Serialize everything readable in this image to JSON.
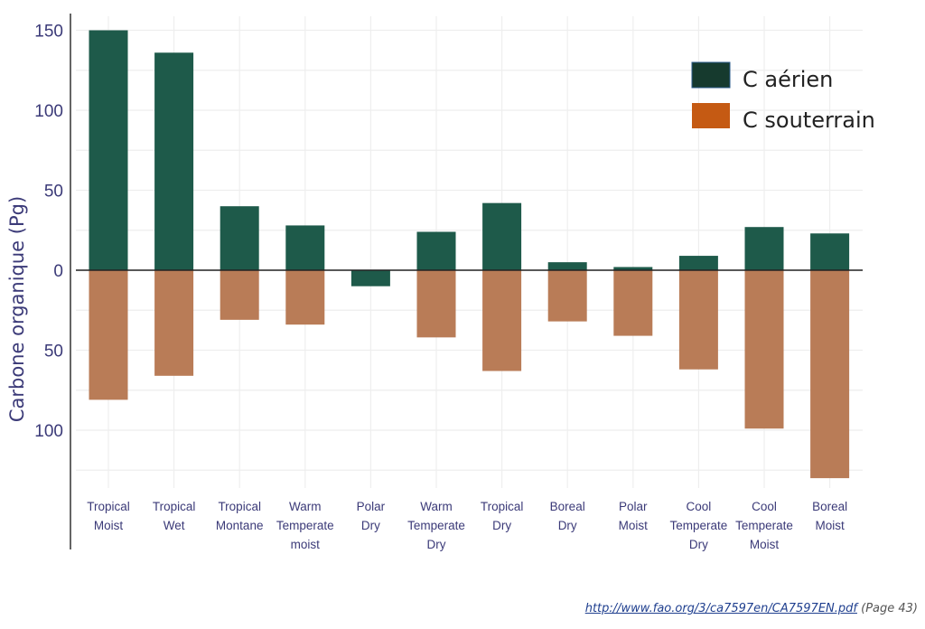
{
  "chart_data": {
    "type": "bar",
    "categories": [
      [
        "Tropical",
        "Moist"
      ],
      [
        "Tropical",
        "Wet"
      ],
      [
        "Tropical",
        "Montane"
      ],
      [
        "Warm",
        "Temperate",
        "moist"
      ],
      [
        "Polar",
        "Dry"
      ],
      [
        "Warm",
        "Temperate",
        "Dry"
      ],
      [
        "Tropical",
        "Dry"
      ],
      [
        "Boreal",
        "Dry"
      ],
      [
        "Polar",
        "Moist"
      ],
      [
        "Cool",
        "Temperate",
        "Dry"
      ],
      [
        "Cool",
        "Temperate",
        "Moist"
      ],
      [
        "Boreal",
        "Moist"
      ]
    ],
    "series": [
      {
        "name": "C aérien",
        "color": "#1e5a4a",
        "values": [
          150,
          136,
          40,
          28,
          -10,
          24,
          42,
          5,
          2,
          9,
          27,
          23
        ]
      },
      {
        "name": "C souterrain",
        "color": "#b97c57",
        "values": [
          -81,
          -66,
          -31,
          -34,
          0,
          -42,
          -63,
          -32,
          -41,
          -62,
          -99,
          -130
        ]
      }
    ],
    "ylabel": "Carbone organique (Pg)",
    "yticks": [
      {
        "value": 150,
        "label": "150"
      },
      {
        "value": 100,
        "label": "100"
      },
      {
        "value": 50,
        "label": "50"
      },
      {
        "value": 0,
        "label": "0"
      },
      {
        "value": -50,
        "label": "50"
      },
      {
        "value": -100,
        "label": "100"
      }
    ],
    "ylim": [
      -140,
      158
    ],
    "legend": {
      "position": "top-right",
      "items": [
        {
          "label": "C aérien",
          "color": "#163a2e"
        },
        {
          "label": "C souterrain",
          "color": "#c55a13"
        }
      ]
    },
    "grid": true
  },
  "source": {
    "link_text": "http://www.fao.org/3/ca7597en/CA7597EN.pdf",
    "note": "(Page 43)"
  }
}
